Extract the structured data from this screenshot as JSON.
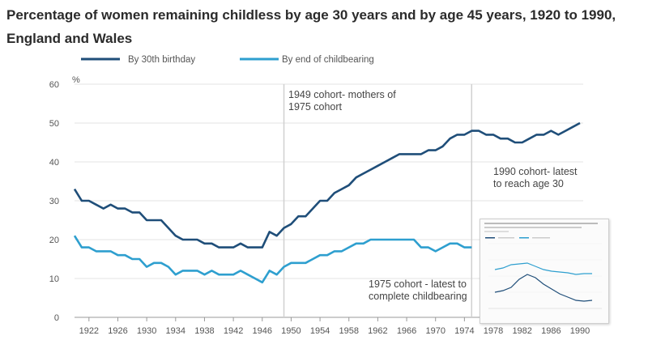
{
  "chart_data": {
    "type": "line",
    "title": "Percentage of women remaining childless by age 30 years and by age 45 years, 1920 to 1990, England and Wales",
    "ylabel": "%",
    "ylim": [
      0,
      60
    ],
    "yticks": [
      0,
      10,
      20,
      30,
      40,
      50,
      60
    ],
    "xlim": [
      1920,
      1990
    ],
    "xticks": [
      1922,
      1926,
      1930,
      1934,
      1938,
      1942,
      1946,
      1950,
      1954,
      1958,
      1962,
      1966,
      1970,
      1974,
      1978,
      1982,
      1986,
      1990
    ],
    "grid": "horizontal",
    "legend_position": "top-left",
    "series": [
      {
        "name": "By 30th birthday",
        "color": "#1f4e79",
        "points": [
          [
            1920,
            33
          ],
          [
            1921,
            30
          ],
          [
            1922,
            30
          ],
          [
            1923,
            29
          ],
          [
            1924,
            28
          ],
          [
            1925,
            29
          ],
          [
            1926,
            28
          ],
          [
            1927,
            28
          ],
          [
            1928,
            27
          ],
          [
            1929,
            27
          ],
          [
            1930,
            25
          ],
          [
            1931,
            25
          ],
          [
            1932,
            25
          ],
          [
            1933,
            23
          ],
          [
            1934,
            21
          ],
          [
            1935,
            20
          ],
          [
            1936,
            20
          ],
          [
            1937,
            20
          ],
          [
            1938,
            19
          ],
          [
            1939,
            19
          ],
          [
            1940,
            18
          ],
          [
            1941,
            18
          ],
          [
            1942,
            18
          ],
          [
            1943,
            19
          ],
          [
            1944,
            18
          ],
          [
            1945,
            18
          ],
          [
            1946,
            18
          ],
          [
            1947,
            22
          ],
          [
            1948,
            21
          ],
          [
            1949,
            23
          ],
          [
            1950,
            24
          ],
          [
            1951,
            26
          ],
          [
            1952,
            26
          ],
          [
            1953,
            28
          ],
          [
            1954,
            30
          ],
          [
            1955,
            30
          ],
          [
            1956,
            32
          ],
          [
            1957,
            33
          ],
          [
            1958,
            34
          ],
          [
            1959,
            36
          ],
          [
            1960,
            37
          ],
          [
            1961,
            38
          ],
          [
            1962,
            39
          ],
          [
            1963,
            40
          ],
          [
            1964,
            41
          ],
          [
            1965,
            42
          ],
          [
            1966,
            42
          ],
          [
            1967,
            42
          ],
          [
            1968,
            42
          ],
          [
            1969,
            43
          ],
          [
            1970,
            43
          ],
          [
            1971,
            44
          ],
          [
            1972,
            46
          ],
          [
            1973,
            47
          ],
          [
            1974,
            47
          ],
          [
            1975,
            48
          ],
          [
            1976,
            48
          ],
          [
            1977,
            47
          ],
          [
            1978,
            47
          ],
          [
            1979,
            46
          ],
          [
            1980,
            46
          ],
          [
            1981,
            45
          ],
          [
            1982,
            45
          ],
          [
            1983,
            46
          ],
          [
            1984,
            47
          ],
          [
            1985,
            47
          ],
          [
            1986,
            48
          ],
          [
            1987,
            47
          ],
          [
            1988,
            48
          ],
          [
            1989,
            49
          ],
          [
            1990,
            50
          ]
        ]
      },
      {
        "name": "By end of childbearing",
        "color": "#2e9fcf",
        "points": [
          [
            1920,
            21
          ],
          [
            1921,
            18
          ],
          [
            1922,
            18
          ],
          [
            1923,
            17
          ],
          [
            1924,
            17
          ],
          [
            1925,
            17
          ],
          [
            1926,
            16
          ],
          [
            1927,
            16
          ],
          [
            1928,
            15
          ],
          [
            1929,
            15
          ],
          [
            1930,
            13
          ],
          [
            1931,
            14
          ],
          [
            1932,
            14
          ],
          [
            1933,
            13
          ],
          [
            1934,
            11
          ],
          [
            1935,
            12
          ],
          [
            1936,
            12
          ],
          [
            1937,
            12
          ],
          [
            1938,
            11
          ],
          [
            1939,
            12
          ],
          [
            1940,
            11
          ],
          [
            1941,
            11
          ],
          [
            1942,
            11
          ],
          [
            1943,
            12
          ],
          [
            1944,
            11
          ],
          [
            1945,
            10
          ],
          [
            1946,
            9
          ],
          [
            1947,
            12
          ],
          [
            1948,
            11
          ],
          [
            1949,
            13
          ],
          [
            1950,
            14
          ],
          [
            1951,
            14
          ],
          [
            1952,
            14
          ],
          [
            1953,
            15
          ],
          [
            1954,
            16
          ],
          [
            1955,
            16
          ],
          [
            1956,
            17
          ],
          [
            1957,
            17
          ],
          [
            1958,
            18
          ],
          [
            1959,
            19
          ],
          [
            1960,
            19
          ],
          [
            1961,
            20
          ],
          [
            1962,
            20
          ],
          [
            1963,
            20
          ],
          [
            1964,
            20
          ],
          [
            1965,
            20
          ],
          [
            1966,
            20
          ],
          [
            1967,
            20
          ],
          [
            1968,
            18
          ],
          [
            1969,
            18
          ],
          [
            1970,
            17
          ],
          [
            1971,
            18
          ],
          [
            1972,
            19
          ],
          [
            1973,
            19
          ],
          [
            1974,
            18
          ],
          [
            1975,
            18
          ]
        ]
      }
    ],
    "reference_lines": [
      {
        "x": 1949,
        "label_lines": [
          "1949 cohort- mothers of",
          "1975 cohort"
        ]
      },
      {
        "x": 1975,
        "label_lines": []
      }
    ],
    "annotations": [
      {
        "lines": [
          "1990 cohort- latest",
          "to reach age 30"
        ]
      },
      {
        "lines": [
          "1975 cohort - latest to",
          "complete childbearing"
        ]
      }
    ]
  }
}
